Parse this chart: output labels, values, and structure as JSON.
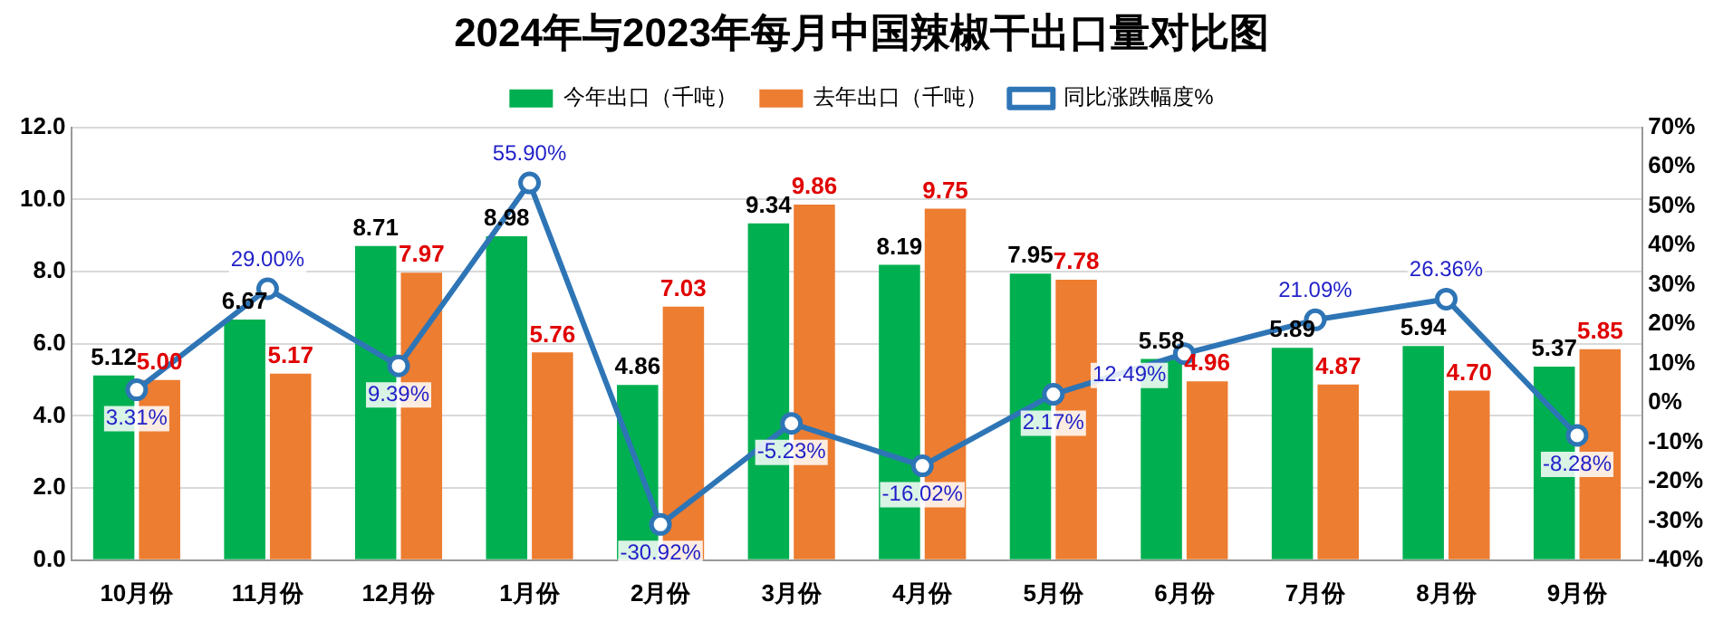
{
  "chart_data": {
    "type": "bar",
    "title": "2024年与2023年每月中国辣椒干出口量对比图",
    "categories": [
      "10月份",
      "11月份",
      "12月份",
      "1月份",
      "2月份",
      "3月份",
      "4月份",
      "5月份",
      "6月份",
      "7月份",
      "8月份",
      "9月份"
    ],
    "series": [
      {
        "name": "今年出口（千吨）",
        "color": "#00b050",
        "values": [
          5.12,
          6.67,
          8.71,
          8.98,
          4.86,
          9.34,
          8.19,
          7.95,
          5.58,
          5.89,
          5.94,
          5.37
        ],
        "value_labels": [
          "5.12",
          "6.67",
          "8.71",
          "8.98",
          "4.86",
          "9.34",
          "8.19",
          "7.95",
          "5.58",
          "5.89",
          "5.94",
          "5.37"
        ]
      },
      {
        "name": "去年出口（千吨）",
        "color": "#ed7d31",
        "values": [
          5.0,
          5.17,
          7.97,
          5.76,
          7.03,
          9.86,
          9.75,
          7.78,
          4.96,
          4.87,
          4.7,
          5.85
        ],
        "value_labels": [
          "5.00",
          "5.17",
          "7.97",
          "5.76",
          "7.03",
          "9.86",
          "9.75",
          "7.78",
          "4.96",
          "4.87",
          "4.70",
          "5.85"
        ]
      },
      {
        "name": "同比涨跌幅度%",
        "type": "line",
        "axis": "y2",
        "color": "#2e75b6",
        "values": [
          3.31,
          29.0,
          9.39,
          55.9,
          -30.92,
          -5.23,
          -16.02,
          2.17,
          12.49,
          21.09,
          26.36,
          -8.28
        ],
        "value_labels": [
          "3.31%",
          "29.00%",
          "9.39%",
          "55.90%",
          "-30.92%",
          "-5.23%",
          "-16.02%",
          "2.17%",
          "12.49%",
          "21.09%",
          "26.36%",
          "-8.28%"
        ]
      }
    ],
    "ylim": [
      0,
      12
    ],
    "yticks": [
      {
        "value": 0,
        "label": "0.0"
      },
      {
        "value": 2,
        "label": "2.0"
      },
      {
        "value": 4,
        "label": "4.0"
      },
      {
        "value": 6,
        "label": "6.0"
      },
      {
        "value": 8,
        "label": "8.0"
      },
      {
        "value": 10,
        "label": "10.0"
      },
      {
        "value": 12,
        "label": "12.0"
      }
    ],
    "y2lim": [
      -40,
      70
    ],
    "y2ticks": [
      {
        "value": -40,
        "label": "-40%"
      },
      {
        "value": -30,
        "label": "-30%"
      },
      {
        "value": -20,
        "label": "-20%"
      },
      {
        "value": -10,
        "label": "-10%"
      },
      {
        "value": 0,
        "label": "0%"
      },
      {
        "value": 10,
        "label": "10%"
      },
      {
        "value": 20,
        "label": "20%"
      },
      {
        "value": 30,
        "label": "30%"
      },
      {
        "value": 40,
        "label": "40%"
      },
      {
        "value": 50,
        "label": "50%"
      },
      {
        "value": 60,
        "label": "60%"
      },
      {
        "value": 70,
        "label": "70%"
      }
    ],
    "grid": "y",
    "legend": "top",
    "marker": "circle",
    "line_style": "solid"
  }
}
